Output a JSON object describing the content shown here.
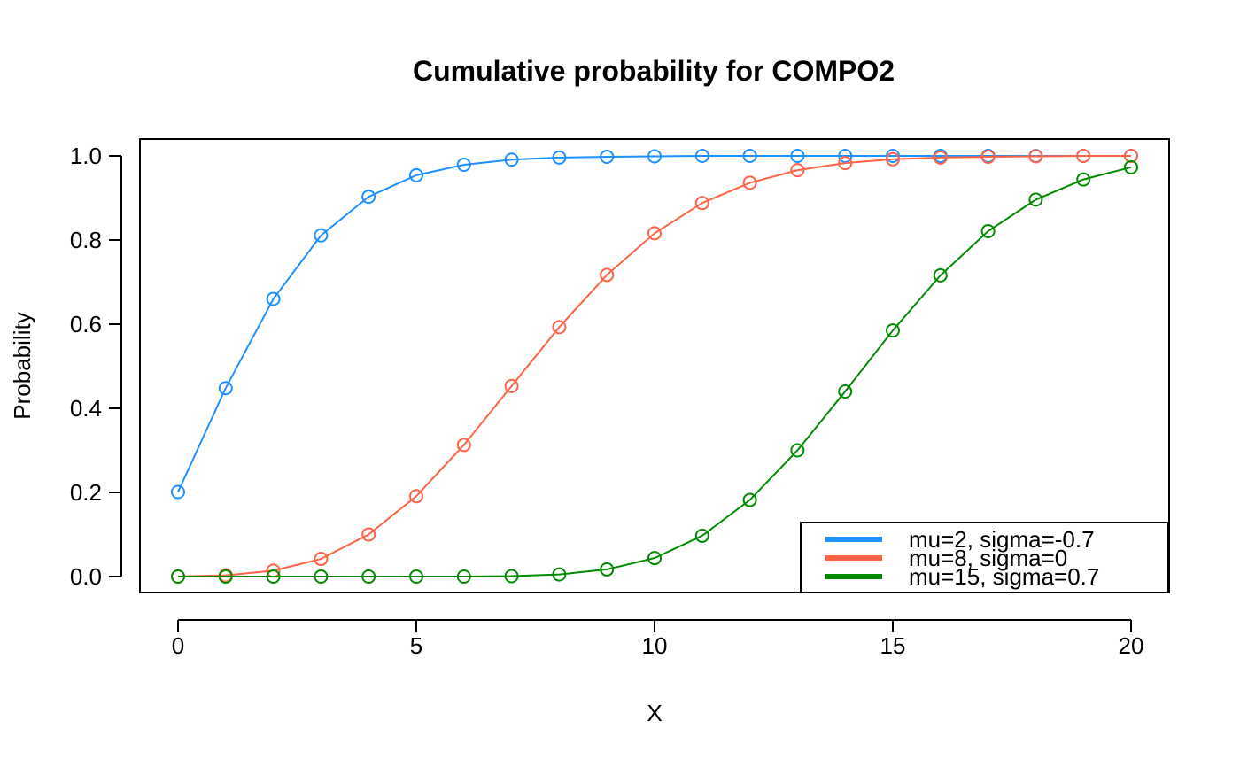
{
  "chart_data": {
    "type": "line",
    "title": "Cumulative probability for COMPO2",
    "xlabel": "X",
    "ylabel": "Probability",
    "xlim": [
      0,
      20
    ],
    "ylim": [
      0,
      1
    ],
    "xticks": [
      "0",
      "5",
      "10",
      "15",
      "20"
    ],
    "yticks": [
      "0.0",
      "0.2",
      "0.4",
      "0.6",
      "0.8",
      "1.0"
    ],
    "grid": false,
    "legend_position": "bottom-right",
    "x": [
      0,
      1,
      2,
      3,
      4,
      5,
      6,
      7,
      8,
      9,
      10,
      11,
      12,
      13,
      14,
      15,
      16,
      17,
      18,
      19,
      20
    ],
    "series": [
      {
        "name": "mu=2, sigma=-0.7",
        "color": "#1e90ff",
        "values": [
          0.201,
          0.448,
          0.66,
          0.811,
          0.903,
          0.954,
          0.979,
          0.991,
          0.996,
          0.998,
          0.999,
          1.0,
          1.0,
          1.0,
          1.0,
          1.0,
          1.0,
          1.0,
          1.0,
          1.0,
          1.0
        ]
      },
      {
        "name": "mu=8, sigma=0",
        "color": "#ff6347",
        "values": [
          0.0003,
          0.003,
          0.014,
          0.042,
          0.1,
          0.191,
          0.313,
          0.453,
          0.593,
          0.717,
          0.816,
          0.888,
          0.936,
          0.966,
          0.983,
          0.992,
          0.996,
          0.998,
          0.999,
          1.0,
          1.0
        ]
      },
      {
        "name": "mu=15, sigma=0.7",
        "color": "#008b00",
        "values": [
          0.0,
          0.0,
          0.0,
          0.0,
          0.0,
          0.0,
          0.0,
          0.001,
          0.005,
          0.017,
          0.044,
          0.097,
          0.182,
          0.3,
          0.44,
          0.585,
          0.716,
          0.821,
          0.896,
          0.944,
          0.973
        ]
      }
    ]
  }
}
